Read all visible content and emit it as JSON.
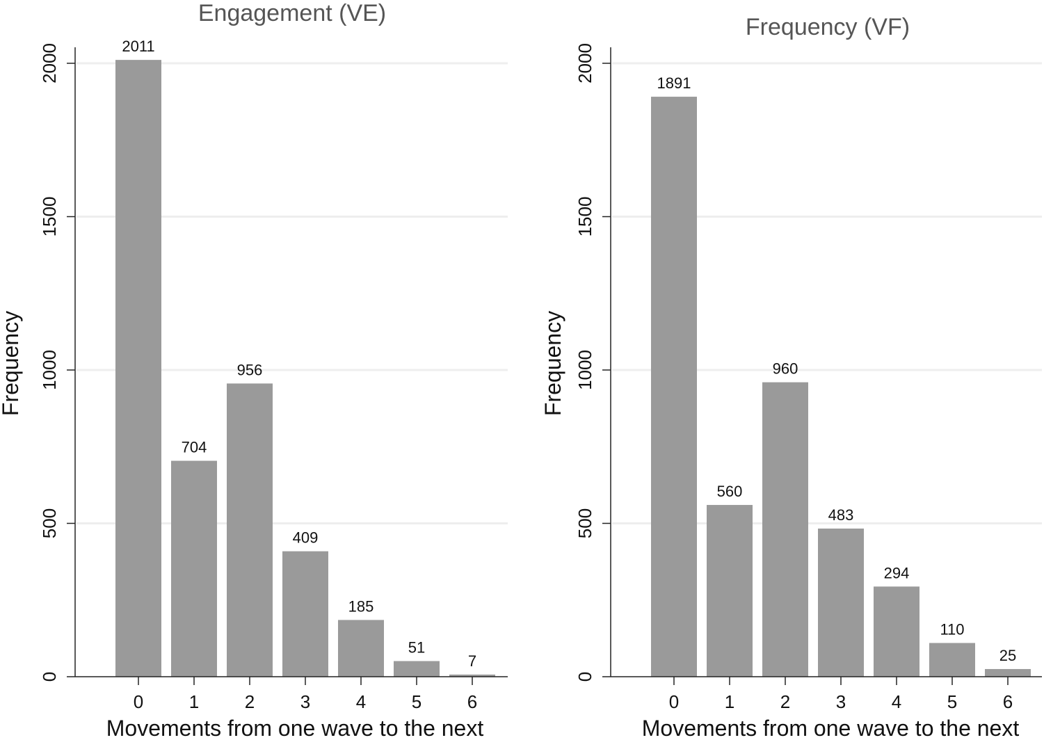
{
  "chart_data": [
    {
      "type": "bar",
      "title": "Engagement (VE)",
      "xlabel": "Movements from one wave to the next",
      "ylabel": "Frequency",
      "categories": [
        "0",
        "1",
        "2",
        "3",
        "4",
        "5",
        "6"
      ],
      "x": [
        0,
        1,
        2,
        3,
        4,
        5,
        6
      ],
      "values": [
        2011,
        704,
        956,
        409,
        185,
        51,
        7
      ],
      "data_labels": [
        "2011",
        "704",
        "956",
        "409",
        "185",
        "51",
        "7"
      ],
      "ylim": [
        0,
        2000
      ],
      "xlim": [
        -1,
        6.6
      ],
      "yticks": [
        0,
        500,
        1000,
        1500,
        2000
      ],
      "ytick_labels": [
        "0",
        "500",
        "1000",
        "1500",
        "2000"
      ],
      "grid": true,
      "bar_color": "#9a9a9a"
    },
    {
      "type": "bar",
      "title": "Frequency (VF)",
      "xlabel": "Movements from one wave to the next",
      "ylabel": "Frequency",
      "categories": [
        "0",
        "1",
        "2",
        "3",
        "4",
        "5",
        "6"
      ],
      "x": [
        0,
        1,
        2,
        3,
        4,
        5,
        6
      ],
      "values": [
        1891,
        560,
        960,
        483,
        294,
        110,
        25
      ],
      "data_labels": [
        "1891",
        "560",
        "960",
        "483",
        "294",
        "110",
        "25"
      ],
      "ylim": [
        0,
        2000
      ],
      "xlim": [
        -1,
        6.6
      ],
      "yticks": [
        0,
        500,
        1000,
        1500,
        2000
      ],
      "ytick_labels": [
        "0",
        "500",
        "1000",
        "1500",
        "2000"
      ],
      "grid": true,
      "bar_color": "#9a9a9a"
    }
  ]
}
